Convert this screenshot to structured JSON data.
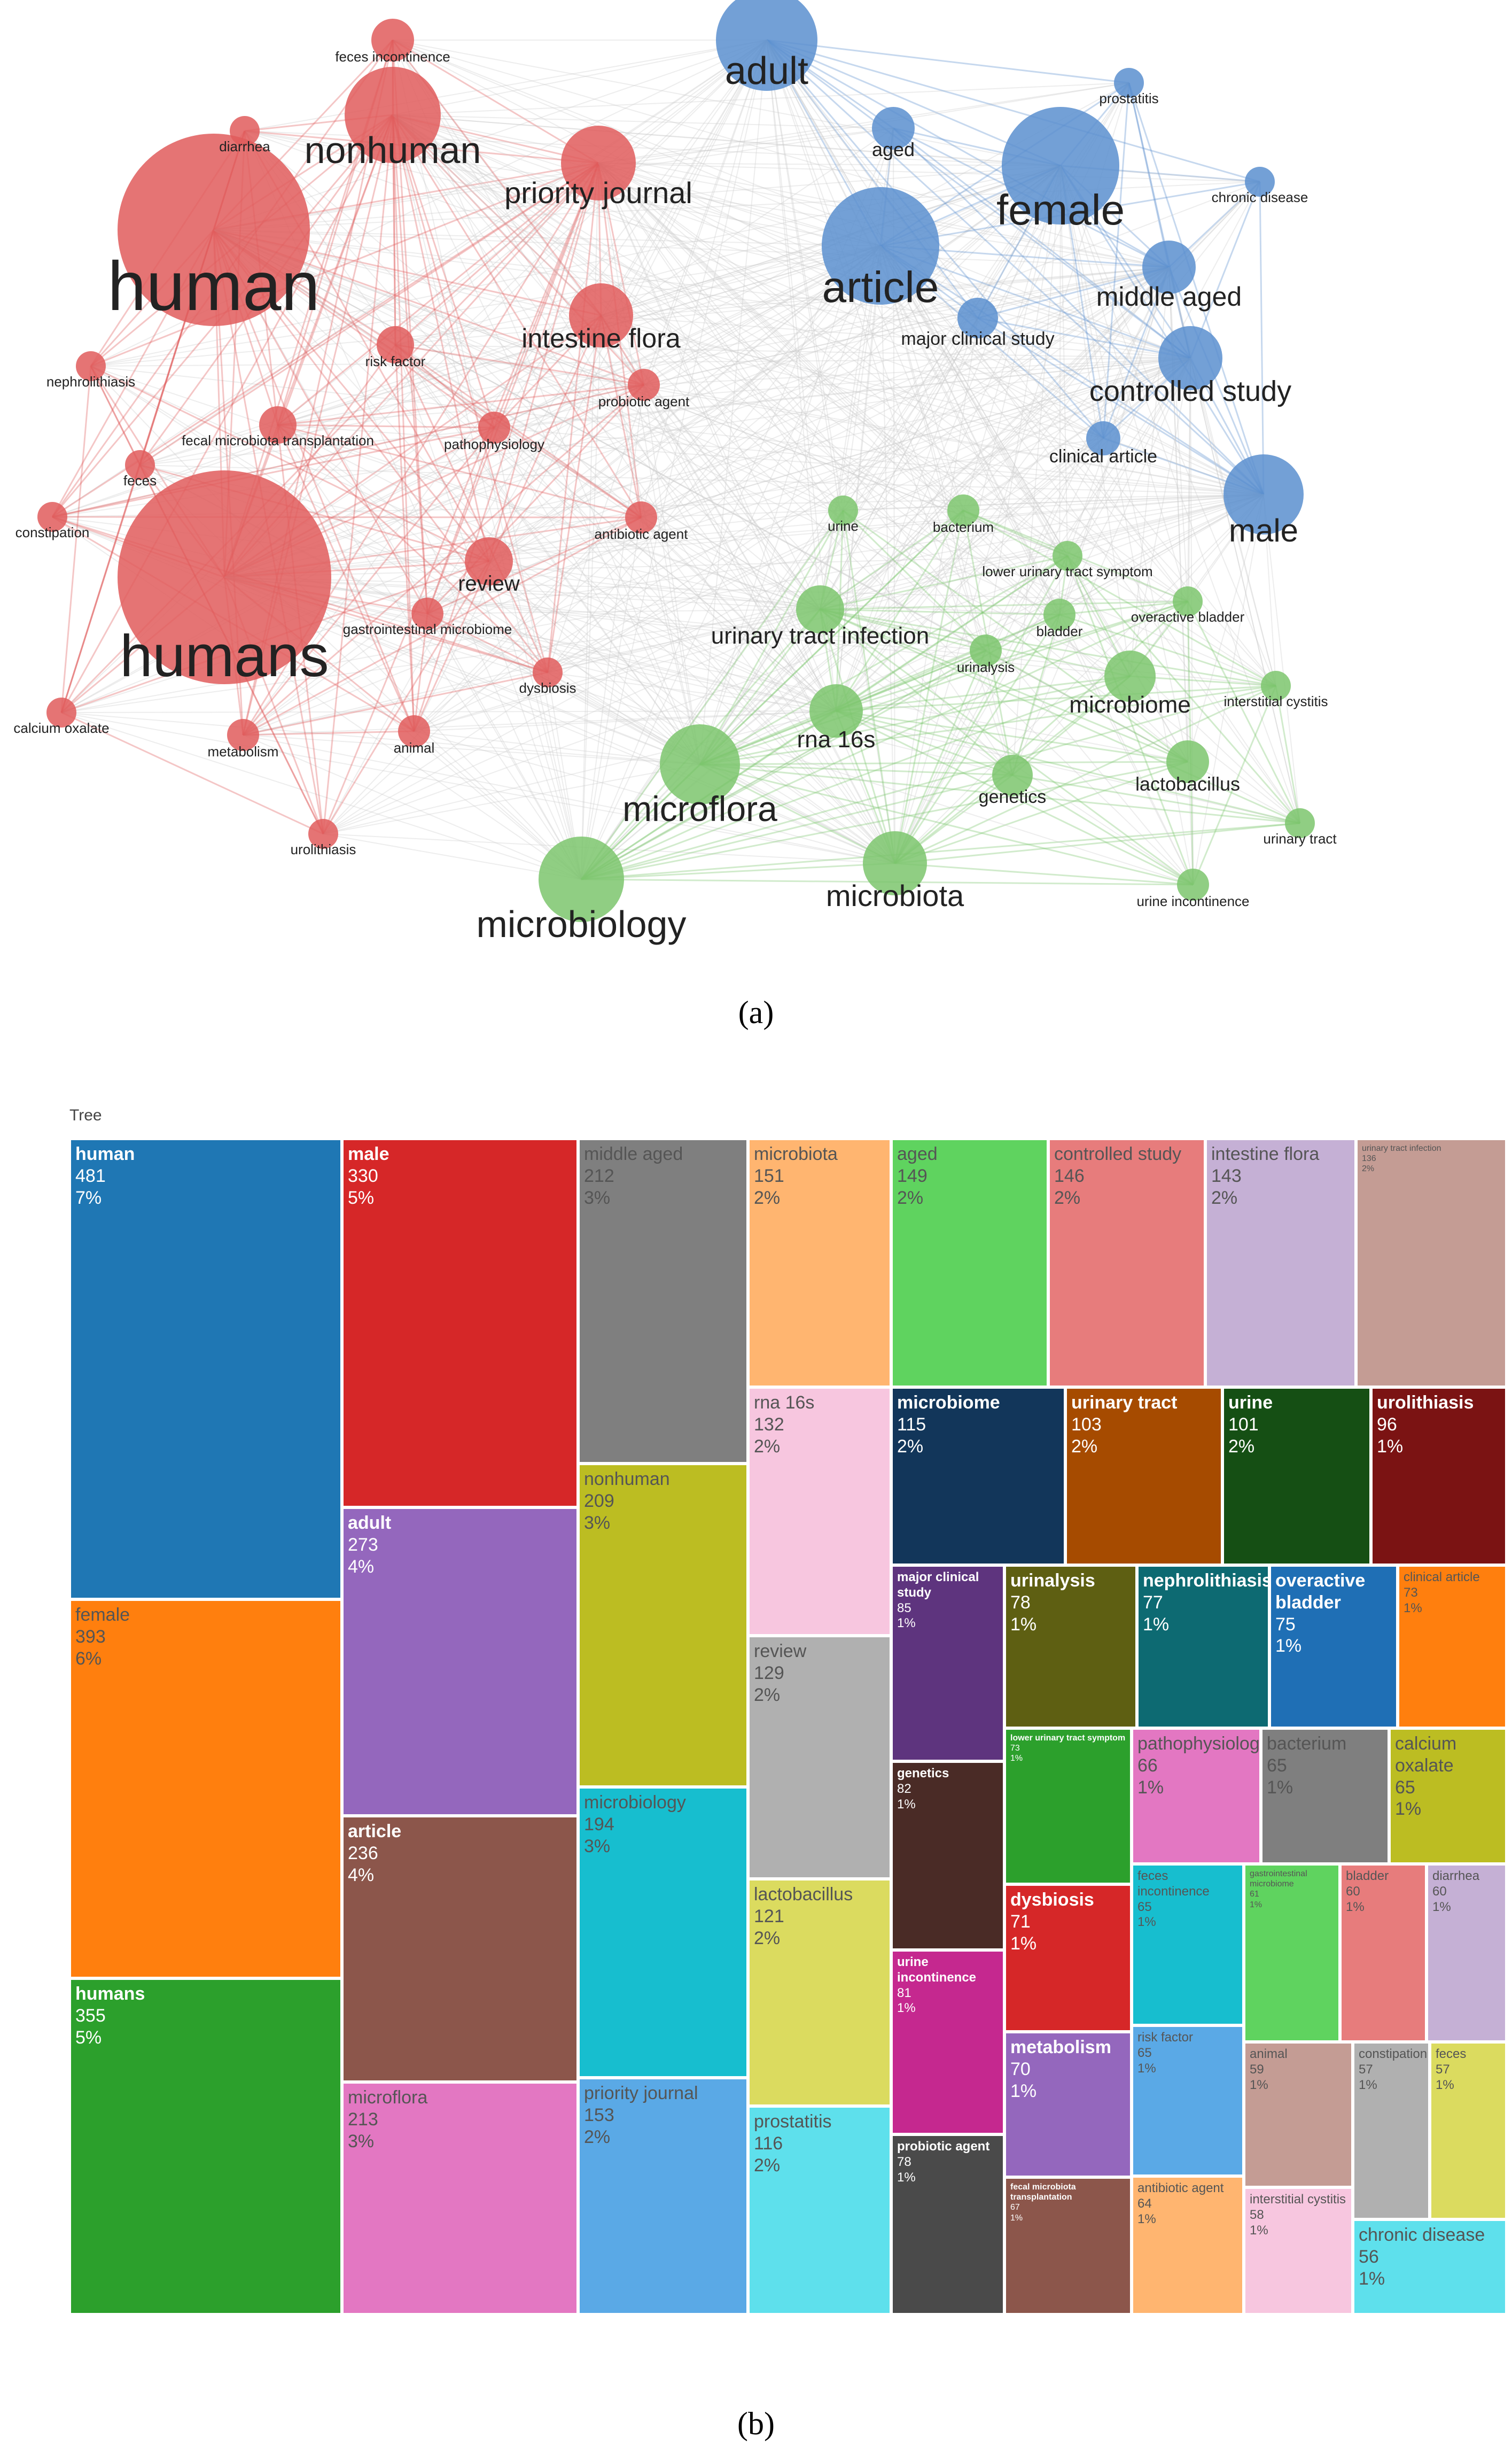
{
  "panel_a_label": "(a)",
  "panel_b_label": "(b)",
  "treemap_title": "Tree",
  "colors": {
    "red": "#e05c5c",
    "blue": "#5b8fcf",
    "green": "#7cc56d",
    "edge": "#cccccc"
  },
  "chart_data": [
    {
      "type": "network",
      "clusters": {
        "red": [
          "human",
          "humans",
          "nonhuman",
          "priority journal",
          "intestine flora",
          "feces incontinence",
          "diarrhea",
          "risk factor",
          "probiotic agent",
          "nephrolithiasis",
          "fecal microbiota transplantation",
          "pathophysiology",
          "feces",
          "constipation",
          "antibiotic agent",
          "review",
          "gastrointestinal microbiome",
          "dysbiosis",
          "calcium oxalate",
          "metabolism",
          "animal",
          "urolithiasis"
        ],
        "blue": [
          "adult",
          "aged",
          "female",
          "prostatitis",
          "chronic disease",
          "article",
          "middle aged",
          "major clinical study",
          "controlled study",
          "clinical article",
          "male"
        ],
        "green": [
          "urine",
          "bacterium",
          "lower urinary tract symptom",
          "urinary tract infection",
          "bladder",
          "overactive bladder",
          "urinalysis",
          "microbiome",
          "interstitial cystitis",
          "rna 16s",
          "microflora",
          "genetics",
          "lactobacillus",
          "urinary tract",
          "microbiology",
          "microbiota",
          "urine incontinence"
        ]
      }
    },
    {
      "type": "treemap",
      "title": "Tree",
      "items": [
        {
          "name": "human",
          "value": 481,
          "pct": "7%",
          "color": "#1f77b4"
        },
        {
          "name": "female",
          "value": 393,
          "pct": "6%",
          "color": "#ff7f0e"
        },
        {
          "name": "humans",
          "value": 355,
          "pct": "5%",
          "color": "#2ca02c"
        },
        {
          "name": "male",
          "value": 330,
          "pct": "5%",
          "color": "#d62728"
        },
        {
          "name": "adult",
          "value": 273,
          "pct": "4%",
          "color": "#9467bd"
        },
        {
          "name": "article",
          "value": 236,
          "pct": "4%",
          "color": "#8c564b"
        },
        {
          "name": "microflora",
          "value": 213,
          "pct": "3%",
          "color": "#e377c2"
        },
        {
          "name": "middle aged",
          "value": 212,
          "pct": "3%",
          "color": "#7f7f7f"
        },
        {
          "name": "nonhuman",
          "value": 209,
          "pct": "3%",
          "color": "#bcbd22"
        },
        {
          "name": "microbiology",
          "value": 194,
          "pct": "3%",
          "color": "#17becf"
        },
        {
          "name": "priority journal",
          "value": 153,
          "pct": "2%",
          "color": "#5aa9e6"
        },
        {
          "name": "microbiota",
          "value": 151,
          "pct": "2%",
          "color": "#ffb570"
        },
        {
          "name": "aged",
          "value": 149,
          "pct": "2%",
          "color": "#5fd35f"
        },
        {
          "name": "controlled study",
          "value": 146,
          "pct": "2%",
          "color": "#e77c7c"
        },
        {
          "name": "intestine flora",
          "value": 143,
          "pct": "2%",
          "color": "#c5b0d5"
        },
        {
          "name": "urinary tract infection",
          "value": 136,
          "pct": "2%",
          "color": "#c49c94"
        },
        {
          "name": "rna 16s",
          "value": 132,
          "pct": "2%",
          "color": "#f7c6df"
        },
        {
          "name": "review",
          "value": 129,
          "pct": "2%",
          "color": "#b0b0b0"
        },
        {
          "name": "lactobacillus",
          "value": 121,
          "pct": "2%",
          "color": "#dbdb5f"
        },
        {
          "name": "prostatitis",
          "value": 116,
          "pct": "2%",
          "color": "#5ee0ec"
        },
        {
          "name": "microbiome",
          "value": 115,
          "pct": "2%",
          "color": "#12365a"
        },
        {
          "name": "urinary tract",
          "value": 103,
          "pct": "2%",
          "color": "#a64b00"
        },
        {
          "name": "urine",
          "value": 101,
          "pct": "2%",
          "color": "#154f14"
        },
        {
          "name": "urolithiasis",
          "value": 96,
          "pct": "1%",
          "color": "#7b1313"
        },
        {
          "name": "major clinical study",
          "value": 85,
          "pct": "1%",
          "color": "#5e347e"
        },
        {
          "name": "genetics",
          "value": 82,
          "pct": "1%",
          "color": "#4a2b26"
        },
        {
          "name": "urine incontinence",
          "value": 81,
          "pct": "1%",
          "color": "#c5288f"
        },
        {
          "name": "urinalysis",
          "value": 78,
          "pct": "1%",
          "color": "#5e5f12"
        },
        {
          "name": "probiotic agent",
          "value": 78,
          "pct": "1%",
          "color": "#4a4a4a"
        },
        {
          "name": "nephrolithiasis",
          "value": 77,
          "pct": "1%",
          "color": "#0d6a72"
        },
        {
          "name": "overactive bladder",
          "value": 75,
          "pct": "1%",
          "color": "#1f6fb5"
        },
        {
          "name": "clinical article",
          "value": 73,
          "pct": "1%",
          "color": "#ff7f0e"
        },
        {
          "name": "lower urinary tract symptom",
          "value": 73,
          "pct": "1%",
          "color": "#2ca02c"
        },
        {
          "name": "dysbiosis",
          "value": 71,
          "pct": "1%",
          "color": "#d62728"
        },
        {
          "name": "metabolism",
          "value": 70,
          "pct": "1%",
          "color": "#9467bd"
        },
        {
          "name": "fecal microbiota transplantation",
          "value": 67,
          "pct": "1%",
          "color": "#8c564b"
        },
        {
          "name": "pathophysiology",
          "value": 66,
          "pct": "1%",
          "color": "#e377c2"
        },
        {
          "name": "bacterium",
          "value": 65,
          "pct": "1%",
          "color": "#7f7f7f"
        },
        {
          "name": "calcium oxalate",
          "value": 65,
          "pct": "1%",
          "color": "#bcbd22"
        },
        {
          "name": "feces incontinence",
          "value": 65,
          "pct": "1%",
          "color": "#17becf"
        },
        {
          "name": "risk factor",
          "value": 65,
          "pct": "1%",
          "color": "#5aa9e6"
        },
        {
          "name": "antibiotic agent",
          "value": 64,
          "pct": "1%",
          "color": "#ffb570"
        },
        {
          "name": "gastrointestinal microbiome",
          "value": 61,
          "pct": "1%",
          "color": "#5fd35f"
        },
        {
          "name": "bladder",
          "value": 60,
          "pct": "1%",
          "color": "#e77c7c"
        },
        {
          "name": "diarrhea",
          "value": 60,
          "pct": "1%",
          "color": "#c5b0d5"
        },
        {
          "name": "animal",
          "value": 59,
          "pct": "1%",
          "color": "#c49c94"
        },
        {
          "name": "interstitial cystitis",
          "value": 58,
          "pct": "1%",
          "color": "#f7c6df"
        },
        {
          "name": "constipation",
          "value": 57,
          "pct": "1%",
          "color": "#b0b0b0"
        },
        {
          "name": "feces",
          "value": 57,
          "pct": "1%",
          "color": "#dbdb5f"
        },
        {
          "name": "chronic disease",
          "value": 56,
          "pct": "1%",
          "color": "#5ee0ec"
        }
      ]
    }
  ]
}
